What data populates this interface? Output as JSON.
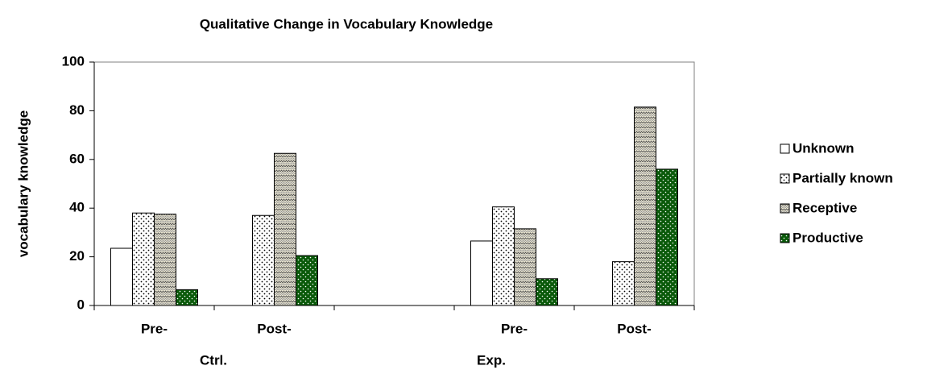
{
  "chart_data": {
    "type": "bar",
    "title": "Qualitative Change in Vocabulary Knowledge",
    "y_label": "vocabulary knowledge",
    "categories": [
      "Pre-",
      "Post-",
      null,
      "Pre-",
      "Post-"
    ],
    "group_labels": [
      "Ctrl.",
      "Exp."
    ],
    "series": [
      {
        "name": "Unknown",
        "color": "#ffffff",
        "values": [
          23.5,
          0,
          null,
          26.5,
          0
        ]
      },
      {
        "name": "Partially known",
        "color": "#ffffff",
        "values": [
          38,
          37,
          null,
          40.5,
          18
        ]
      },
      {
        "name": "Receptive",
        "color": "#e8e4d0",
        "values": [
          37.5,
          62.5,
          null,
          31.5,
          81.5
        ]
      },
      {
        "name": "Productive",
        "color": "#0a5a0a",
        "values": [
          6.5,
          20.5,
          null,
          11,
          56
        ]
      }
    ],
    "ylim": [
      0,
      100
    ],
    "yticks": [
      0,
      20,
      40,
      60,
      80,
      100
    ],
    "legend": "right"
  }
}
